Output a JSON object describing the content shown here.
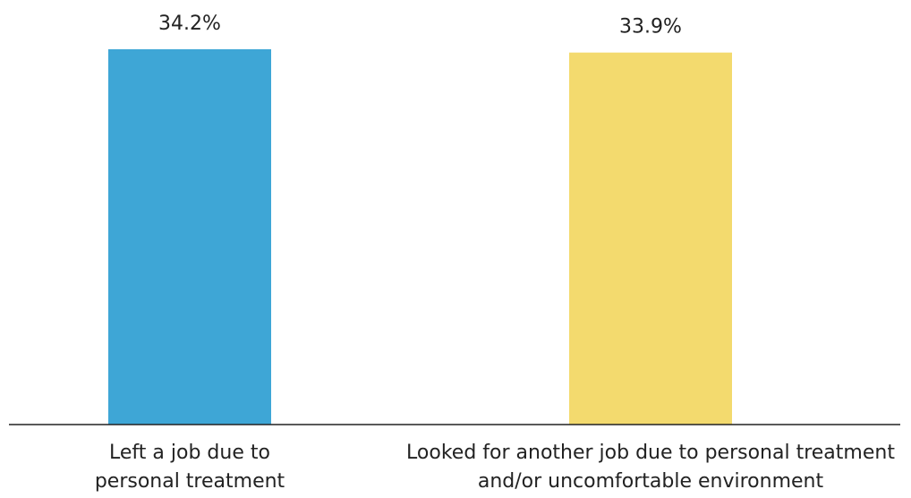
{
  "chart_data": {
    "type": "bar",
    "categories": [
      "Left a job due to personal treatment",
      "Looked for another job due to personal treatment and/or uncomfortable environment"
    ],
    "category_label_lines": [
      [
        "Left a job due to",
        "personal treatment"
      ],
      [
        "Looked for another job due to personal treatment",
        "and/or uncomfortable environment"
      ]
    ],
    "values": [
      34.2,
      33.9
    ],
    "data_labels": [
      "34.2%",
      "33.9%"
    ],
    "colors": [
      "#3ea6d6",
      "#f3da6e"
    ],
    "title": "",
    "xlabel": "",
    "ylabel": "",
    "ylim": [
      0,
      34.2
    ],
    "grid": false,
    "legend": "none"
  }
}
